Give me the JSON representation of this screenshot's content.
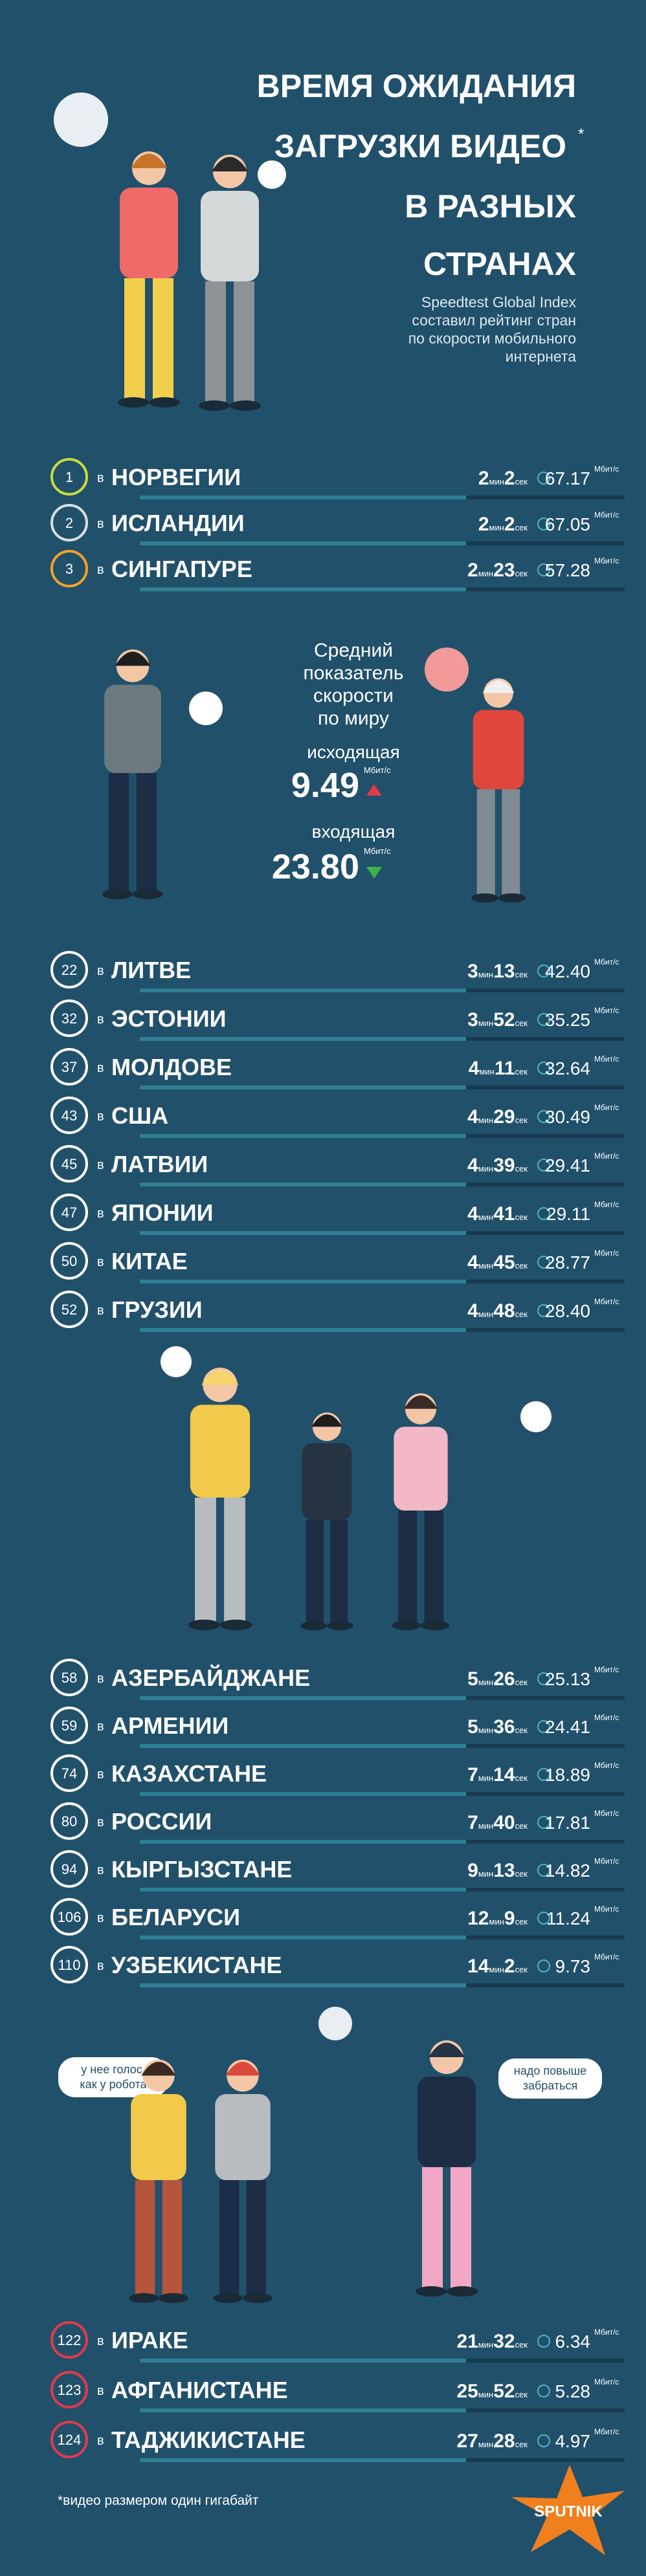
{
  "header": {
    "title": [
      "ВРЕМЯ ОЖИДАНИЯ",
      "ЗАГРУЗКИ ВИДЕО",
      "В РАЗНЫХ",
      "СТРАНАХ"
    ],
    "title_mark": "*",
    "subtitle": [
      "Speedtest Global Index",
      "составил рейтинг стран",
      "по скорости мобильного",
      "интернета"
    ]
  },
  "labels": {
    "prep": "в",
    "min": "мин",
    "sec": "сек",
    "unit": "Мбит/с"
  },
  "world": {
    "title": [
      "Средний",
      "показатель",
      "скорости",
      "по миру"
    ],
    "upload_label": "исходящая",
    "upload": "9.49",
    "download_label": "входящая",
    "download": "23.80"
  },
  "groups": [
    {
      "ring": "#ffffff",
      "rows": [
        {
          "rank": "1",
          "ring": "#c8dc3c",
          "country": "НОРВЕГИИ",
          "min": "2",
          "sec": "2",
          "speed": "67.17"
        },
        {
          "rank": "2",
          "ring": "#d9dde0",
          "country": "ИСЛАНДИИ",
          "min": "2",
          "sec": "2",
          "speed": "67.05"
        },
        {
          "rank": "3",
          "ring": "#f2a22c",
          "country": "СИНГАПУРЕ",
          "min": "2",
          "sec": "23",
          "speed": "57.28"
        }
      ]
    },
    {
      "ring": "#ffffff",
      "rows": [
        {
          "rank": "22",
          "country": "ЛИТВЕ",
          "min": "3",
          "sec": "13",
          "speed": "42.40"
        },
        {
          "rank": "32",
          "country": "ЭСТОНИИ",
          "min": "3",
          "sec": "52",
          "speed": "35.25"
        },
        {
          "rank": "37",
          "country": "МОЛДОВЕ",
          "min": "4",
          "sec": "11",
          "speed": "32.64"
        },
        {
          "rank": "43",
          "country": "США",
          "min": "4",
          "sec": "29",
          "speed": "30.49"
        },
        {
          "rank": "45",
          "country": "ЛАТВИИ",
          "min": "4",
          "sec": "39",
          "speed": "29.41"
        },
        {
          "rank": "47",
          "country": "ЯПОНИИ",
          "min": "4",
          "sec": "41",
          "speed": "29.11"
        },
        {
          "rank": "50",
          "country": "КИТАЕ",
          "min": "4",
          "sec": "45",
          "speed": "28.77"
        },
        {
          "rank": "52",
          "country": "ГРУЗИИ",
          "min": "4",
          "sec": "48",
          "speed": "28.40"
        }
      ]
    },
    {
      "ring": "#ffffff",
      "rows": [
        {
          "rank": "58",
          "country": "АЗЕРБАЙДЖАНЕ",
          "min": "5",
          "sec": "26",
          "speed": "25.13"
        },
        {
          "rank": "59",
          "country": "АРМЕНИИ",
          "min": "5",
          "sec": "36",
          "speed": "24.41"
        },
        {
          "rank": "74",
          "country": "КАЗАХСТАНЕ",
          "min": "7",
          "sec": "14",
          "speed": "18.89"
        },
        {
          "rank": "80",
          "country": "РОССИИ",
          "min": "7",
          "sec": "40",
          "speed": "17.81"
        },
        {
          "rank": "94",
          "country": "КЫРГЫЗСТАНЕ",
          "min": "9",
          "sec": "13",
          "speed": "14.82"
        },
        {
          "rank": "106",
          "country": "БЕЛАРУСИ",
          "min": "12",
          "sec": "9",
          "speed": "11.24"
        },
        {
          "rank": "110",
          "country": "УЗБЕКИСТАНЕ",
          "min": "14",
          "sec": "2",
          "speed": "9.73"
        }
      ]
    },
    {
      "ring": "#e23a4a",
      "rows": [
        {
          "rank": "122",
          "country": "ИРАКЕ",
          "min": "21",
          "sec": "32",
          "speed": "6.34"
        },
        {
          "rank": "123",
          "country": "АФГАНИСТАНЕ",
          "min": "25",
          "sec": "52",
          "speed": "5.28"
        },
        {
          "rank": "124",
          "country": "ТАДЖИКИСТАНЕ",
          "min": "27",
          "sec": "28",
          "speed": "4.97"
        }
      ]
    }
  ],
  "bubbles": {
    "left": [
      "у нее голос,",
      "как у робота"
    ],
    "right": [
      "надо повыше",
      "забраться"
    ]
  },
  "footnote": "*видео размером один гигабайт",
  "logo": "SPUTNIK"
}
